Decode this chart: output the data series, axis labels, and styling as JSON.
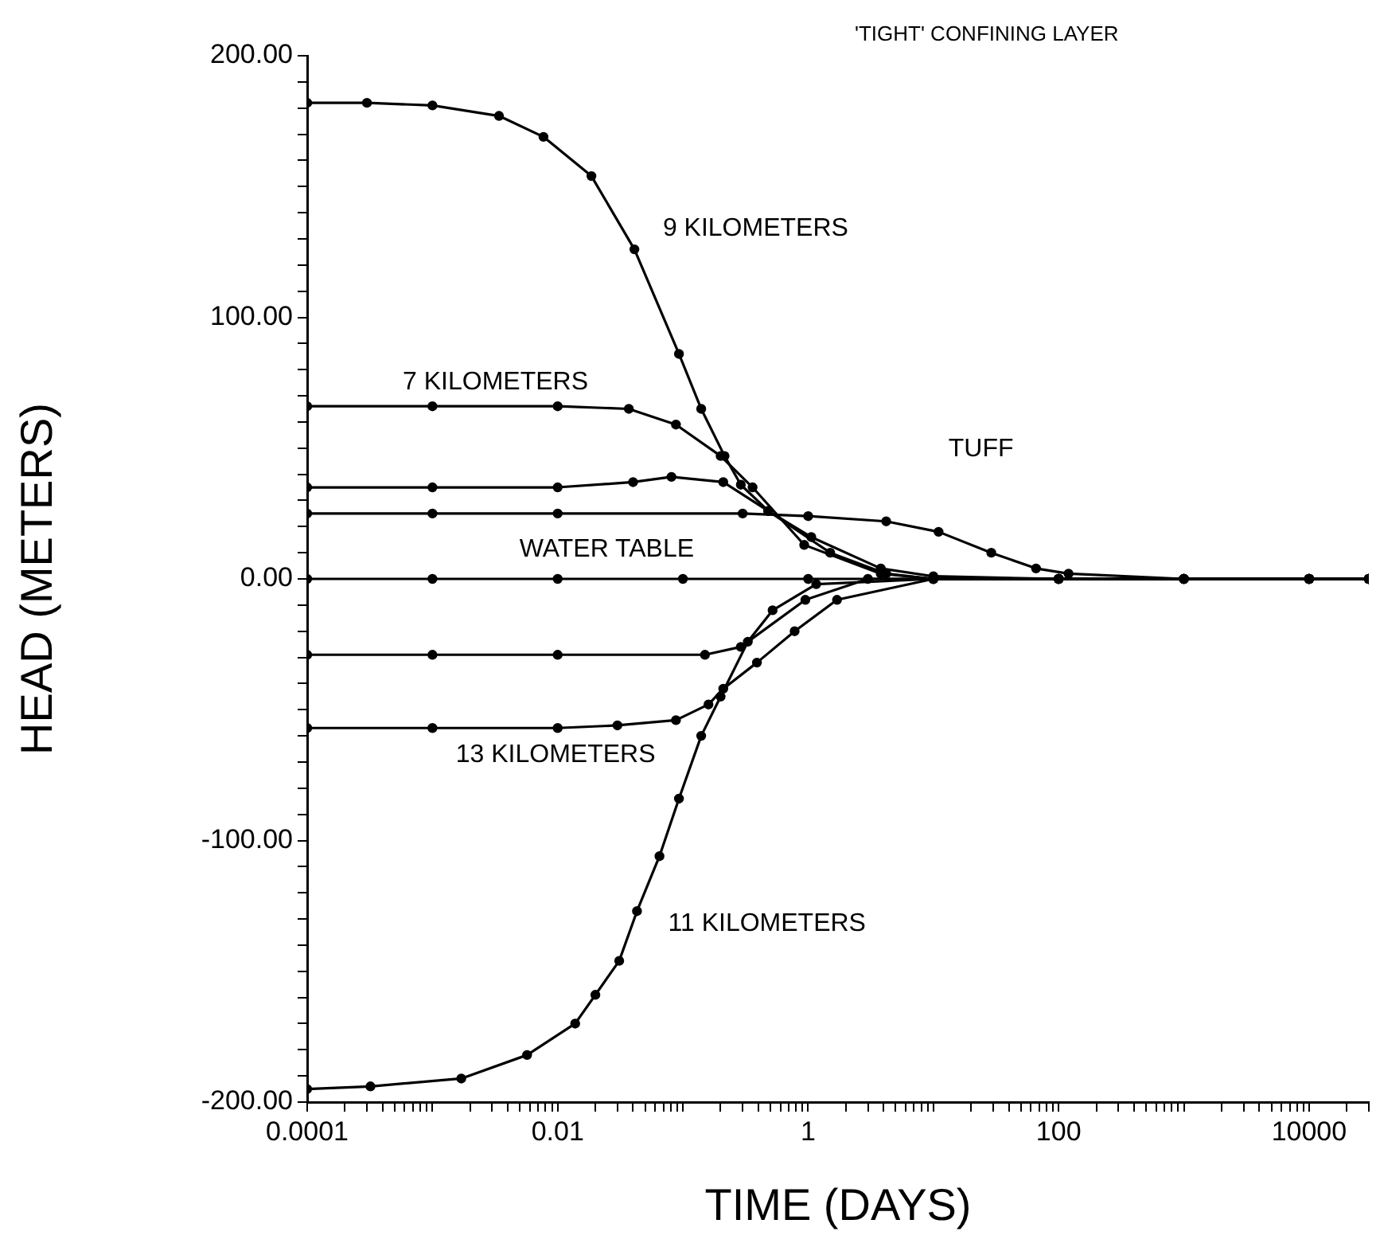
{
  "chart_data": {
    "type": "line",
    "title": "'TIGHT' CONFINING LAYER",
    "xlabel": "TIME (DAYS)",
    "ylabel": "HEAD (METERS)",
    "log": "x",
    "grid": false,
    "legend": false,
    "marker": "circle",
    "line_style": "solid",
    "xlim": [
      0.0001,
      30000
    ],
    "xticks": [
      0.0001,
      {
        "value": 0.0002,
        "label": null
      },
      {
        "value": 0.0003,
        "label": null
      },
      {
        "value": 0.0004,
        "label": null
      },
      {
        "value": 0.0005,
        "label": null
      },
      {
        "value": 0.0006,
        "label": null
      },
      {
        "value": 0.0007,
        "label": null
      },
      {
        "value": 0.0008,
        "label": null
      },
      {
        "value": 0.0009,
        "label": null
      },
      {
        "value": 0.001,
        "label": null
      },
      {
        "value": 0.002,
        "label": null
      },
      {
        "value": 0.003,
        "label": null
      },
      {
        "value": 0.004,
        "label": null
      },
      {
        "value": 0.005,
        "label": null
      },
      {
        "value": 0.006,
        "label": null
      },
      {
        "value": 0.007,
        "label": null
      },
      {
        "value": 0.008,
        "label": null
      },
      {
        "value": 0.009,
        "label": null
      },
      0.01,
      {
        "value": 0.02,
        "label": null
      },
      {
        "value": 0.03,
        "label": null
      },
      {
        "value": 0.04,
        "label": null
      },
      {
        "value": 0.05,
        "label": null
      },
      {
        "value": 0.06,
        "label": null
      },
      {
        "value": 0.07,
        "label": null
      },
      {
        "value": 0.08,
        "label": null
      },
      {
        "value": 0.09,
        "label": null
      },
      {
        "value": 0.1,
        "label": null
      },
      {
        "value": 0.2,
        "label": null
      },
      {
        "value": 0.3,
        "label": null
      },
      {
        "value": 0.4,
        "label": null
      },
      {
        "value": 0.5,
        "label": null
      },
      {
        "value": 0.6,
        "label": null
      },
      {
        "value": 0.7,
        "label": null
      },
      {
        "value": 0.8,
        "label": null
      },
      {
        "value": 0.9,
        "label": null
      },
      1,
      {
        "value": 2,
        "label": null
      },
      {
        "value": 3,
        "label": null
      },
      {
        "value": 4,
        "label": null
      },
      {
        "value": 5,
        "label": null
      },
      {
        "value": 6,
        "label": null
      },
      {
        "value": 7,
        "label": null
      },
      {
        "value": 8,
        "label": null
      },
      {
        "value": 9,
        "label": null
      },
      {
        "value": 10,
        "label": null
      },
      {
        "value": 20,
        "label": null
      },
      {
        "value": 30,
        "label": null
      },
      {
        "value": 40,
        "label": null
      },
      {
        "value": 50,
        "label": null
      },
      {
        "value": 60,
        "label": null
      },
      {
        "value": 70,
        "label": null
      },
      {
        "value": 80,
        "label": null
      },
      {
        "value": 90,
        "label": null
      },
      100,
      {
        "value": 200,
        "label": null
      },
      {
        "value": 300,
        "label": null
      },
      {
        "value": 400,
        "label": null
      },
      {
        "value": 500,
        "label": null
      },
      {
        "value": 600,
        "label": null
      },
      {
        "value": 700,
        "label": null
      },
      {
        "value": 800,
        "label": null
      },
      {
        "value": 900,
        "label": null
      },
      {
        "value": 1000,
        "label": null
      },
      {
        "value": 2000,
        "label": null
      },
      {
        "value": 3000,
        "label": null
      },
      {
        "value": 4000,
        "label": null
      },
      {
        "value": 5000,
        "label": null
      },
      {
        "value": 6000,
        "label": null
      },
      {
        "value": 7000,
        "label": null
      },
      {
        "value": 8000,
        "label": null
      },
      {
        "value": 9000,
        "label": null
      },
      10000,
      {
        "value": 20000,
        "label": null
      },
      {
        "value": 30000,
        "label": null
      }
    ],
    "ylim": [
      -200,
      200
    ],
    "yticks": [
      {
        "value": -200,
        "label": "-200.00"
      },
      {
        "value": -190,
        "label": null
      },
      {
        "value": -180,
        "label": null
      },
      {
        "value": -170,
        "label": null
      },
      {
        "value": -160,
        "label": null
      },
      {
        "value": -150,
        "label": null
      },
      {
        "value": -140,
        "label": null
      },
      {
        "value": -130,
        "label": null
      },
      {
        "value": -120,
        "label": null
      },
      {
        "value": -110,
        "label": null
      },
      {
        "value": -100,
        "label": "-100.00"
      },
      {
        "value": -90,
        "label": null
      },
      {
        "value": -80,
        "label": null
      },
      {
        "value": -70,
        "label": null
      },
      {
        "value": -60,
        "label": null
      },
      {
        "value": -50,
        "label": null
      },
      {
        "value": -40,
        "label": null
      },
      {
        "value": -30,
        "label": null
      },
      {
        "value": -20,
        "label": null
      },
      {
        "value": -10,
        "label": null
      },
      {
        "value": 0,
        "label": "0.00"
      },
      {
        "value": 10,
        "label": null
      },
      {
        "value": 20,
        "label": null
      },
      {
        "value": 30,
        "label": null
      },
      {
        "value": 40,
        "label": null
      },
      {
        "value": 50,
        "label": null
      },
      {
        "value": 60,
        "label": null
      },
      {
        "value": 70,
        "label": null
      },
      {
        "value": 80,
        "label": null
      },
      {
        "value": 90,
        "label": null
      },
      {
        "value": 100,
        "label": "100.00"
      },
      {
        "value": 110,
        "label": null
      },
      {
        "value": 120,
        "label": null
      },
      {
        "value": 130,
        "label": null
      },
      {
        "value": 140,
        "label": null
      },
      {
        "value": 150,
        "label": null
      },
      {
        "value": 160,
        "label": null
      },
      {
        "value": 170,
        "label": null
      },
      {
        "value": 180,
        "label": null
      },
      {
        "value": 190,
        "label": null
      },
      {
        "value": 200,
        "label": "200.00"
      }
    ],
    "series": [
      {
        "name": "9 KILOMETERS",
        "color": "#000000",
        "x": [
          0.0001,
          0.0003,
          0.001,
          0.0034,
          0.0077,
          0.0186,
          0.041,
          0.093,
          0.14,
          0.215,
          0.29,
          0.48,
          1.06,
          3.8,
          10,
          100,
          1000,
          10000,
          30000
        ],
        "values": [
          182,
          182,
          181,
          177,
          169,
          154,
          126,
          86,
          65,
          47,
          36,
          26,
          16,
          4,
          1,
          0,
          0,
          0,
          0
        ]
      },
      {
        "name": "7 KILOMETERS",
        "color": "#000000",
        "x": [
          0.0001,
          0.001,
          0.01,
          0.037,
          0.088,
          0.2,
          0.36,
          0.93,
          3.8,
          10,
          100,
          1000,
          10000,
          30000
        ],
        "values": [
          66,
          66,
          66,
          65,
          59,
          47,
          35,
          13,
          2,
          0,
          0,
          0,
          0,
          0
        ]
      },
      {
        "color": "#000000",
        "x": [
          0.0001,
          0.001,
          0.01,
          0.04,
          0.081,
          0.21,
          0.48,
          1.5,
          4.2,
          10,
          100,
          1000,
          10000,
          30000
        ],
        "values": [
          35,
          35,
          35,
          37,
          39,
          37,
          26,
          10,
          2,
          0,
          0,
          0,
          0,
          0
        ]
      },
      {
        "name": "TUFF",
        "color": "#000000",
        "x": [
          0.0001,
          0.001,
          0.01,
          0.3,
          1,
          4.2,
          11,
          29,
          66,
          120,
          1000,
          10000,
          30000
        ],
        "values": [
          25,
          25,
          25,
          25,
          24,
          22,
          18,
          10,
          4,
          2,
          0,
          0,
          0
        ]
      },
      {
        "name": "WATER TABLE",
        "color": "#000000",
        "x": [
          0.0001,
          0.001,
          0.01,
          0.1,
          1,
          10,
          100,
          1000,
          10000,
          30000
        ],
        "values": [
          0,
          0,
          0,
          0,
          0,
          0,
          0,
          0,
          0,
          0
        ]
      },
      {
        "color": "#000000",
        "x": [
          0.0001,
          0.001,
          0.01,
          0.15,
          0.29,
          0.95,
          3,
          10,
          100,
          1000,
          10000,
          30000
        ],
        "values": [
          -29,
          -29,
          -29,
          -29,
          -26,
          -8,
          0,
          0,
          0,
          0,
          0,
          0
        ]
      },
      {
        "name": "13 KILOMETERS",
        "color": "#000000",
        "x": [
          0.0001,
          0.001,
          0.01,
          0.03,
          0.088,
          0.16,
          0.21,
          0.39,
          0.78,
          1.7,
          10,
          100,
          1000,
          10000,
          30000
        ],
        "values": [
          -57,
          -57,
          -57,
          -56,
          -54,
          -48,
          -42,
          -32,
          -20,
          -8,
          0,
          0,
          0,
          0,
          0
        ]
      },
      {
        "name": "11 KILOMETERS",
        "color": "#000000",
        "x": [
          0.0001,
          0.00032,
          0.0017,
          0.0057,
          0.0138,
          0.02,
          0.031,
          0.043,
          0.065,
          0.093,
          0.14,
          0.2,
          0.33,
          0.52,
          1.16,
          10,
          100,
          1000,
          10000,
          30000
        ],
        "values": [
          -195,
          -194,
          -191,
          -182,
          -170,
          -159,
          -146,
          -127,
          -106,
          -84,
          -60,
          -45,
          -24,
          -12,
          -2,
          0,
          0,
          0,
          0,
          0
        ]
      }
    ]
  }
}
